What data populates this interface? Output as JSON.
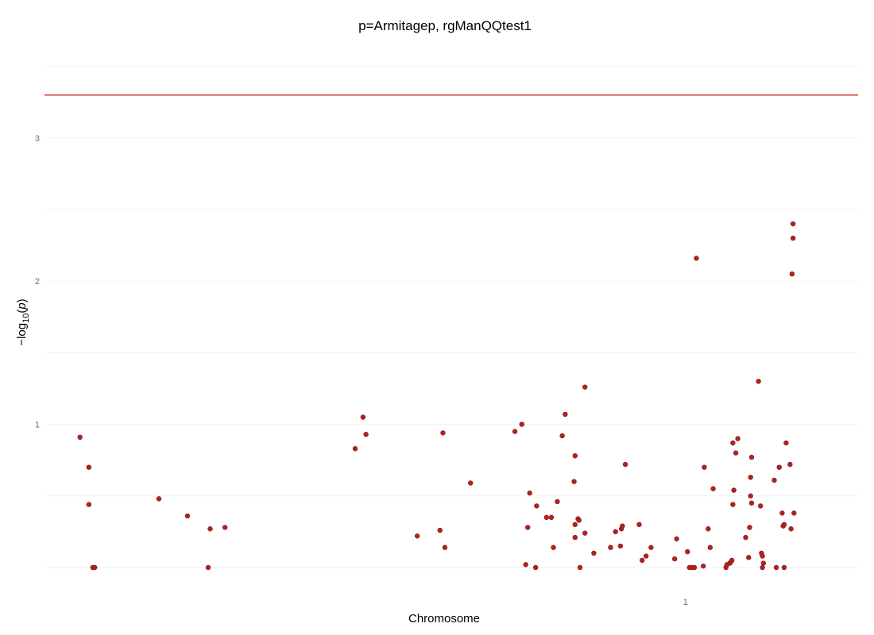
{
  "chart_data": {
    "type": "scatter",
    "title": "p=Armitagep, rgManQQtest1",
    "xlabel": "Chromosome",
    "ylabel_prefix": "−log",
    "ylabel_sub": "10",
    "ylabel_open": "(",
    "ylabel_var": "p",
    "ylabel_close": ")",
    "x_ticks": [
      {
        "value": 1,
        "label": "1"
      }
    ],
    "y_ticks": [
      {
        "value": 1,
        "label": "1"
      },
      {
        "value": 2,
        "label": "2"
      },
      {
        "value": 3,
        "label": "3"
      }
    ],
    "y_gridlines": [
      0,
      0.5,
      1,
      1.5,
      2,
      2.5,
      3,
      3.5
    ],
    "threshold": 3.3,
    "xlim": [
      -0.065,
      0.0175
    ],
    "ylim": [
      -0.1,
      3.52
    ],
    "grid": true,
    "legend": "none",
    "colors": {
      "point": "#b22222",
      "threshold": "#d9403a"
    },
    "points": [
      [
        -0.0614,
        0.91
      ],
      [
        -0.0605,
        0.7
      ],
      [
        -0.0605,
        0.44
      ],
      [
        -0.0601,
        0.0
      ],
      [
        -0.0599,
        0.0
      ],
      [
        -0.0534,
        0.48
      ],
      [
        -0.0505,
        0.36
      ],
      [
        -0.0484,
        0.0
      ],
      [
        -0.0482,
        0.27
      ],
      [
        -0.0467,
        0.28
      ],
      [
        -0.0335,
        0.83
      ],
      [
        -0.0327,
        1.05
      ],
      [
        -0.0324,
        0.93
      ],
      [
        -0.0272,
        0.22
      ],
      [
        -0.0249,
        0.26
      ],
      [
        -0.0246,
        0.94
      ],
      [
        -0.0244,
        0.14
      ],
      [
        -0.0218,
        0.59
      ],
      [
        -0.0173,
        0.95
      ],
      [
        -0.0166,
        1.0
      ],
      [
        -0.0162,
        0.02
      ],
      [
        -0.016,
        0.28
      ],
      [
        -0.0158,
        0.52
      ],
      [
        -0.0152,
        0.0
      ],
      [
        -0.0151,
        0.43
      ],
      [
        -0.0141,
        0.35
      ],
      [
        -0.0136,
        0.35
      ],
      [
        -0.0134,
        0.14
      ],
      [
        -0.013,
        0.46
      ],
      [
        -0.0125,
        0.92
      ],
      [
        -0.0122,
        1.07
      ],
      [
        -0.0113,
        0.6
      ],
      [
        -0.0112,
        0.78
      ],
      [
        -0.0112,
        0.21
      ],
      [
        -0.0112,
        0.3
      ],
      [
        -0.0109,
        0.34
      ],
      [
        -0.0108,
        0.33
      ],
      [
        -0.0107,
        0.0
      ],
      [
        -0.0102,
        1.26
      ],
      [
        -0.0102,
        0.24
      ],
      [
        -0.0093,
        0.1
      ],
      [
        -0.0076,
        0.14
      ],
      [
        -0.0071,
        0.25
      ],
      [
        -0.0066,
        0.15
      ],
      [
        -0.0065,
        0.27
      ],
      [
        -0.0064,
        0.29
      ],
      [
        -0.0061,
        0.72
      ],
      [
        -0.0047,
        0.3
      ],
      [
        -0.0044,
        0.05
      ],
      [
        -0.004,
        0.08
      ],
      [
        -0.0035,
        0.14
      ],
      [
        -0.0011,
        0.06
      ],
      [
        -0.0009,
        0.2
      ],
      [
        0.0002,
        0.11
      ],
      [
        0.0004,
        0.0
      ],
      [
        0.0007,
        0.0
      ],
      [
        0.0009,
        0.0
      ],
      [
        0.0011,
        2.16
      ],
      [
        0.0019,
        0.7
      ],
      [
        0.0018,
        0.01
      ],
      [
        0.0023,
        0.27
      ],
      [
        0.0025,
        0.14
      ],
      [
        0.0028,
        0.55
      ],
      [
        0.0041,
        0.0
      ],
      [
        0.0042,
        0.02
      ],
      [
        0.0045,
        0.03
      ],
      [
        0.0046,
        0.04
      ],
      [
        0.0047,
        0.05
      ],
      [
        0.0048,
        0.87
      ],
      [
        0.0048,
        0.44
      ],
      [
        0.0049,
        0.54
      ],
      [
        0.0051,
        0.8
      ],
      [
        0.0053,
        0.9
      ],
      [
        0.0061,
        0.21
      ],
      [
        0.0064,
        0.07
      ],
      [
        0.0065,
        0.28
      ],
      [
        0.0066,
        0.5
      ],
      [
        0.0066,
        0.63
      ],
      [
        0.0067,
        0.45
      ],
      [
        0.0067,
        0.77
      ],
      [
        0.0074,
        1.3
      ],
      [
        0.0076,
        0.43
      ],
      [
        0.0077,
        0.1
      ],
      [
        0.0078,
        0.08
      ],
      [
        0.0078,
        0.0
      ],
      [
        0.0079,
        0.03
      ],
      [
        0.009,
        0.61
      ],
      [
        0.0092,
        0.0
      ],
      [
        0.0095,
        0.7
      ],
      [
        0.0098,
        0.38
      ],
      [
        0.0099,
        0.29
      ],
      [
        0.01,
        0.0
      ],
      [
        0.01,
        0.3
      ],
      [
        0.0102,
        0.87
      ],
      [
        0.0106,
        0.72
      ],
      [
        0.0107,
        0.27
      ],
      [
        0.0108,
        2.05
      ],
      [
        0.0109,
        2.3
      ],
      [
        0.0109,
        2.4
      ],
      [
        0.011,
        0.38
      ]
    ]
  }
}
